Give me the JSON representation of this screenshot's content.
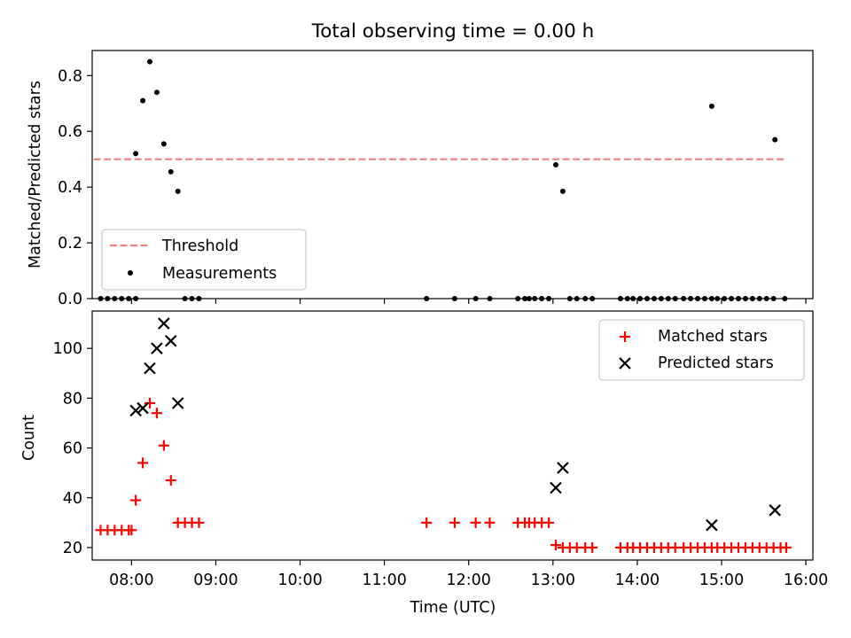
{
  "title": "Total observing time = 0.00 h",
  "chart_data": [
    {
      "type": "scatter",
      "panel": "top",
      "ylabel": "Matched/Predicted stars",
      "xlim": [
        "07:32",
        "16:05"
      ],
      "ylim": [
        0,
        0.89
      ],
      "yticks": [
        0.0,
        0.2,
        0.4,
        0.6,
        0.8
      ],
      "ytick_labels": [
        "0.0",
        "0.2",
        "0.4",
        "0.6",
        "0.8"
      ],
      "legend_position": "lower-left",
      "legend": {
        "threshold_label": "Threshold",
        "measurements_label": "Measurements"
      },
      "threshold": {
        "name": "Threshold",
        "value": 0.5,
        "x_range": [
          "07:33",
          "15:45"
        ],
        "color": "#f08080",
        "style": "dashed"
      },
      "series": [
        {
          "name": "Measurements",
          "color": "#000000",
          "marker": "dot",
          "points": [
            [
              "07:38",
              0
            ],
            [
              "07:43",
              0
            ],
            [
              "07:48",
              0
            ],
            [
              "07:53",
              0
            ],
            [
              "07:58",
              0
            ],
            [
              "08:03",
              0
            ],
            [
              "08:03",
              0.52
            ],
            [
              "08:08",
              0.71
            ],
            [
              "08:13",
              0.85
            ],
            [
              "08:18",
              0.74
            ],
            [
              "08:23",
              0.555
            ],
            [
              "08:28",
              0.455
            ],
            [
              "08:33",
              0.385
            ],
            [
              "08:38",
              0
            ],
            [
              "08:43",
              0
            ],
            [
              "08:48",
              0
            ],
            [
              "11:30",
              0
            ],
            [
              "11:50",
              0
            ],
            [
              "12:05",
              0
            ],
            [
              "12:15",
              0
            ],
            [
              "12:35",
              0
            ],
            [
              "12:40",
              0
            ],
            [
              "12:43",
              0
            ],
            [
              "12:47",
              0
            ],
            [
              "12:52",
              0
            ],
            [
              "12:57",
              0
            ],
            [
              "13:02",
              0.48
            ],
            [
              "13:07",
              0.385
            ],
            [
              "13:12",
              0
            ],
            [
              "13:17",
              0
            ],
            [
              "13:23",
              0
            ],
            [
              "13:28",
              0
            ],
            [
              "13:48",
              0
            ],
            [
              "13:53",
              0
            ],
            [
              "13:57",
              0
            ],
            [
              "14:02",
              0
            ],
            [
              "14:07",
              0
            ],
            [
              "14:12",
              0
            ],
            [
              "14:17",
              0
            ],
            [
              "14:22",
              0
            ],
            [
              "14:27",
              0
            ],
            [
              "14:33",
              0
            ],
            [
              "14:38",
              0
            ],
            [
              "14:43",
              0
            ],
            [
              "14:48",
              0
            ],
            [
              "14:53",
              0
            ],
            [
              "14:57",
              0
            ],
            [
              "14:53",
              0.69
            ],
            [
              "15:02",
              0
            ],
            [
              "15:07",
              0
            ],
            [
              "15:12",
              0
            ],
            [
              "15:17",
              0
            ],
            [
              "15:22",
              0
            ],
            [
              "15:27",
              0
            ],
            [
              "15:32",
              0
            ],
            [
              "15:37",
              0
            ],
            [
              "15:38",
              0.57
            ],
            [
              "15:45",
              0
            ]
          ]
        }
      ]
    },
    {
      "type": "scatter",
      "panel": "bottom",
      "xlabel": "Time (UTC)",
      "ylabel": "Count",
      "xlim": [
        "07:32",
        "16:05"
      ],
      "ylim": [
        15,
        115
      ],
      "yticks": [
        20,
        40,
        60,
        80,
        100
      ],
      "ytick_labels": [
        "20",
        "40",
        "60",
        "80",
        "100"
      ],
      "xticks": [
        "08:00",
        "09:00",
        "10:00",
        "11:00",
        "12:00",
        "13:00",
        "14:00",
        "15:00",
        "16:00"
      ],
      "legend_position": "upper-right",
      "legend": {
        "matched_label": "Matched stars",
        "predicted_label": "Predicted stars"
      },
      "series": [
        {
          "name": "Matched stars",
          "color": "#ff0000",
          "marker": "plus",
          "points": [
            [
              "07:38",
              27
            ],
            [
              "07:43",
              27
            ],
            [
              "07:48",
              27
            ],
            [
              "07:53",
              27
            ],
            [
              "07:58",
              27
            ],
            [
              "08:00",
              27
            ],
            [
              "08:03",
              39
            ],
            [
              "08:08",
              54
            ],
            [
              "08:13",
              78
            ],
            [
              "08:18",
              74
            ],
            [
              "08:23",
              61
            ],
            [
              "08:28",
              47
            ],
            [
              "08:33",
              30
            ],
            [
              "08:38",
              30
            ],
            [
              "08:43",
              30
            ],
            [
              "08:48",
              30
            ],
            [
              "11:30",
              30
            ],
            [
              "11:50",
              30
            ],
            [
              "12:05",
              30
            ],
            [
              "12:15",
              30
            ],
            [
              "12:35",
              30
            ],
            [
              "12:40",
              30
            ],
            [
              "12:43",
              30
            ],
            [
              "12:47",
              30
            ],
            [
              "12:52",
              30
            ],
            [
              "12:57",
              30
            ],
            [
              "13:02",
              21
            ],
            [
              "13:07",
              20
            ],
            [
              "13:12",
              20
            ],
            [
              "13:17",
              20
            ],
            [
              "13:23",
              20
            ],
            [
              "13:28",
              20
            ],
            [
              "13:48",
              20
            ],
            [
              "13:53",
              20
            ],
            [
              "13:57",
              20
            ],
            [
              "14:02",
              20
            ],
            [
              "14:07",
              20
            ],
            [
              "14:12",
              20
            ],
            [
              "14:17",
              20
            ],
            [
              "14:22",
              20
            ],
            [
              "14:27",
              20
            ],
            [
              "14:33",
              20
            ],
            [
              "14:38",
              20
            ],
            [
              "14:43",
              20
            ],
            [
              "14:48",
              20
            ],
            [
              "14:53",
              20
            ],
            [
              "14:57",
              20
            ],
            [
              "15:02",
              20
            ],
            [
              "15:07",
              20
            ],
            [
              "15:12",
              20
            ],
            [
              "15:17",
              20
            ],
            [
              "15:22",
              20
            ],
            [
              "15:27",
              20
            ],
            [
              "15:32",
              20
            ],
            [
              "15:37",
              20
            ],
            [
              "15:42",
              20
            ],
            [
              "15:46",
              20
            ]
          ]
        },
        {
          "name": "Predicted stars",
          "color": "#000000",
          "marker": "x",
          "points": [
            [
              "08:03",
              75
            ],
            [
              "08:08",
              76
            ],
            [
              "08:13",
              92
            ],
            [
              "08:18",
              100
            ],
            [
              "08:23",
              110
            ],
            [
              "08:28",
              103
            ],
            [
              "08:33",
              78
            ],
            [
              "13:02",
              44
            ],
            [
              "13:07",
              52
            ],
            [
              "14:53",
              29
            ],
            [
              "15:38",
              35
            ]
          ]
        }
      ]
    }
  ]
}
